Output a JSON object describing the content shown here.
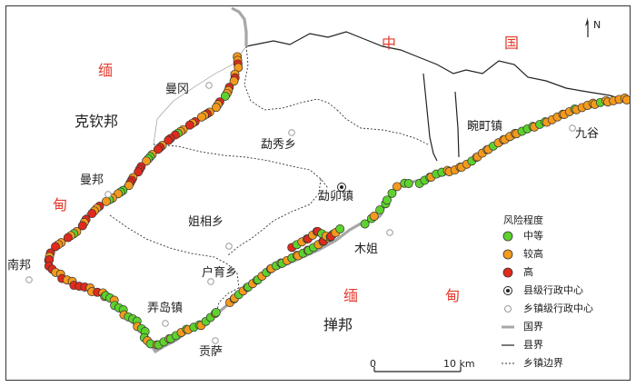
{
  "north_arrow": {
    "label": "N",
    "icon": "north-arrow-icon"
  },
  "labels": {
    "china": [
      "中",
      "国"
    ],
    "myanmar_west": [
      "缅",
      "甸"
    ],
    "myanmar_south": [
      "缅",
      "甸"
    ],
    "kachin": "克钦邦",
    "shan": "掸邦",
    "mangang": "曼冈",
    "mangbang": "曼邦",
    "nanbang": "南邦",
    "mengxiu": "勐秀乡",
    "mengmao": "勐卯镇",
    "jiexiang": "姐相乡",
    "huyu": "户育乡",
    "nongdao": "弄岛镇",
    "gongsa": "贡萨",
    "muje": "木姐",
    "wanding": "畹町镇",
    "jiugu": "九谷"
  },
  "legend": {
    "title": "风险程度",
    "items": [
      {
        "label": "中等",
        "color": "#5ed12e",
        "icon": "medium-risk-icon"
      },
      {
        "label": "较高",
        "color": "#f39a1e",
        "icon": "high-risk-icon"
      },
      {
        "label": "高",
        "color": "#e02a1c",
        "icon": "very-high-risk-icon"
      },
      {
        "label": "县级行政中心",
        "icon": "county-center-icon"
      },
      {
        "label": "乡镇级行政中心",
        "icon": "town-center-icon"
      },
      {
        "label": "国界",
        "icon": "national-border-icon"
      },
      {
        "label": "县界",
        "icon": "county-border-icon"
      },
      {
        "label": "乡镇边界",
        "icon": "township-border-icon"
      }
    ]
  },
  "scale_bar": {
    "start": "0",
    "end": "10 km"
  }
}
